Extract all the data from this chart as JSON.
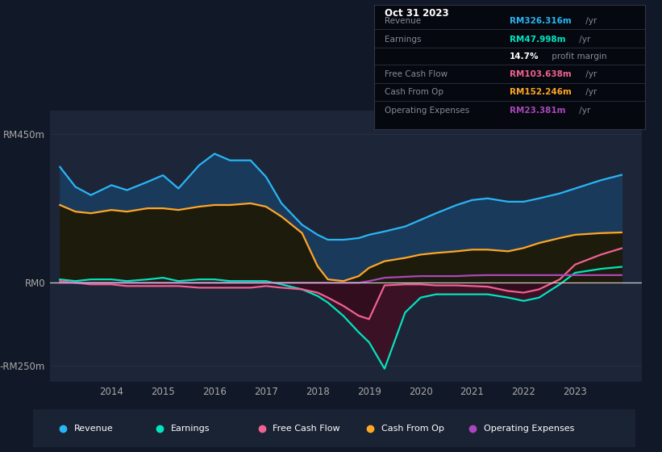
{
  "bg_color": "#111827",
  "chart_bg": "#111827",
  "panel_bg": "#1c2638",
  "grid_color": "#253040",
  "zero_line_color": "#cccccc",
  "ylim": [
    -300,
    520
  ],
  "ytick_positions": [
    450,
    0,
    -250
  ],
  "ytick_labels": [
    "RM450m",
    "RM0",
    "-RM250m"
  ],
  "xlim": [
    2012.8,
    2024.3
  ],
  "xtick_values": [
    2014,
    2015,
    2016,
    2017,
    2018,
    2019,
    2020,
    2021,
    2022,
    2023
  ],
  "xtick_labels": [
    "2014",
    "2015",
    "2016",
    "2017",
    "2018",
    "2019",
    "2020",
    "2021",
    "2022",
    "2023"
  ],
  "revenue_color": "#29b6f6",
  "earnings_color": "#00e5c0",
  "fcf_color": "#f06292",
  "cashop_color": "#ffa726",
  "opex_color": "#ab47bc",
  "revenue_fill": "#1a3a5c",
  "cashop_fill": "#2a2010",
  "earnings_neg_fill": "#3d1025",
  "years": [
    2013.0,
    2013.3,
    2013.6,
    2014.0,
    2014.3,
    2014.7,
    2015.0,
    2015.3,
    2015.7,
    2016.0,
    2016.3,
    2016.7,
    2017.0,
    2017.3,
    2017.7,
    2018.0,
    2018.2,
    2018.5,
    2018.8,
    2019.0,
    2019.3,
    2019.7,
    2020.0,
    2020.3,
    2020.7,
    2021.0,
    2021.3,
    2021.7,
    2022.0,
    2022.3,
    2022.7,
    2023.0,
    2023.5,
    2023.9
  ],
  "revenue": [
    350,
    290,
    265,
    295,
    280,
    305,
    325,
    285,
    355,
    390,
    370,
    370,
    320,
    240,
    175,
    145,
    130,
    130,
    135,
    145,
    155,
    170,
    190,
    210,
    235,
    250,
    255,
    245,
    245,
    255,
    270,
    285,
    310,
    326
  ],
  "cashop": [
    235,
    215,
    210,
    220,
    215,
    225,
    225,
    220,
    230,
    235,
    235,
    240,
    230,
    200,
    150,
    50,
    10,
    5,
    20,
    45,
    65,
    75,
    85,
    90,
    95,
    100,
    100,
    95,
    105,
    120,
    135,
    145,
    150,
    152
  ],
  "earnings": [
    10,
    5,
    10,
    10,
    5,
    10,
    15,
    5,
    10,
    10,
    5,
    5,
    5,
    -5,
    -20,
    -40,
    -60,
    -100,
    -150,
    -180,
    -260,
    -90,
    -45,
    -35,
    -35,
    -35,
    -35,
    -45,
    -55,
    -45,
    -5,
    30,
    42,
    48
  ],
  "fcf": [
    5,
    0,
    -5,
    -5,
    -10,
    -10,
    -10,
    -10,
    -15,
    -15,
    -15,
    -15,
    -10,
    -15,
    -20,
    -30,
    -45,
    -70,
    -100,
    -110,
    -8,
    -5,
    -5,
    -8,
    -8,
    -10,
    -12,
    -25,
    -30,
    -20,
    10,
    55,
    85,
    104
  ],
  "opex": [
    0,
    0,
    0,
    0,
    0,
    0,
    0,
    0,
    0,
    0,
    0,
    0,
    0,
    0,
    0,
    0,
    0,
    0,
    0,
    5,
    15,
    18,
    20,
    20,
    20,
    22,
    23,
    23,
    23,
    23,
    23,
    23,
    23,
    23
  ],
  "info_box": {
    "date": "Oct 31 2023",
    "rows": [
      {
        "label": "Revenue",
        "value": "RM326.316m",
        "suffix": " /yr",
        "vcolor": "#29b6f6"
      },
      {
        "label": "Earnings",
        "value": "RM47.998m",
        "suffix": " /yr",
        "vcolor": "#00e5c0"
      },
      {
        "label": "",
        "value": "14.7%",
        "suffix": " profit margin",
        "vcolor": "#ffffff"
      },
      {
        "label": "Free Cash Flow",
        "value": "RM103.638m",
        "suffix": " /yr",
        "vcolor": "#f06292"
      },
      {
        "label": "Cash From Op",
        "value": "RM152.246m",
        "suffix": " /yr",
        "vcolor": "#ffa726"
      },
      {
        "label": "Operating Expenses",
        "value": "RM23.381m",
        "suffix": " /yr",
        "vcolor": "#ab47bc"
      }
    ]
  },
  "legend_items": [
    {
      "label": "Revenue",
      "color": "#29b6f6"
    },
    {
      "label": "Earnings",
      "color": "#00e5c0"
    },
    {
      "label": "Free Cash Flow",
      "color": "#f06292"
    },
    {
      "label": "Cash From Op",
      "color": "#ffa726"
    },
    {
      "label": "Operating Expenses",
      "color": "#ab47bc"
    }
  ]
}
